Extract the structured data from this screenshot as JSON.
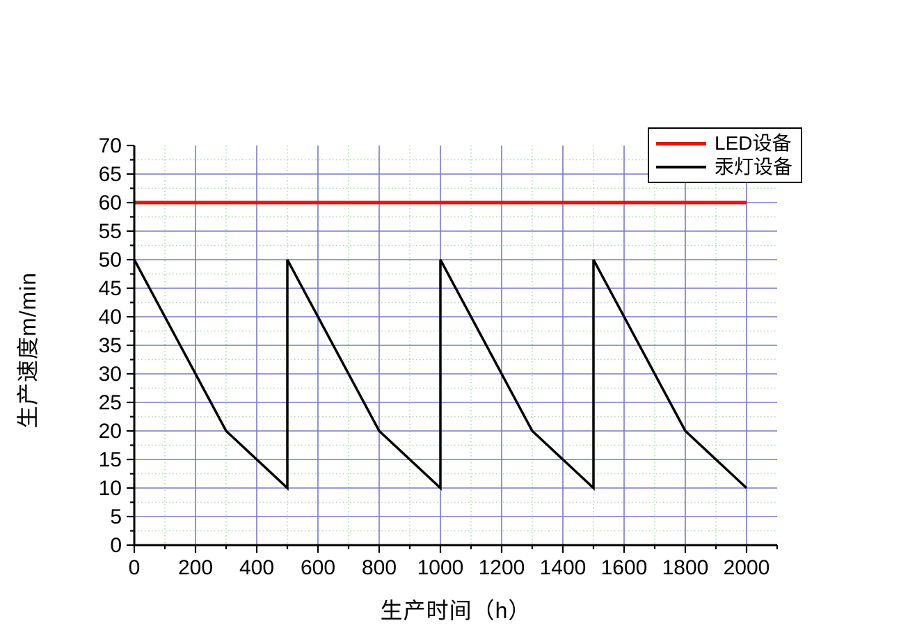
{
  "chart_data": {
    "type": "line",
    "title": "",
    "xlabel": "生产时间（h）",
    "ylabel": "生产速度m/min",
    "xlim": [
      0,
      2100
    ],
    "ylim": [
      0,
      70
    ],
    "x_major_step": 200,
    "x_minor_step": 100,
    "x_label_max": 2000,
    "y_major_step": 5,
    "y_minor_step": 2.5,
    "grid": {
      "major_color": "#7878c8",
      "minor_color": "#a6d9a6",
      "minor_style": "dotted"
    },
    "axis_color": "#000000",
    "legend": {
      "position": "top-right"
    },
    "series": [
      {
        "name": "LED设备",
        "color": "#e11414",
        "width": 5,
        "points": [
          [
            0,
            60
          ],
          [
            2000,
            60
          ]
        ]
      },
      {
        "name": "汞灯设备",
        "color": "#000000",
        "width": 3.5,
        "points": [
          [
            0,
            50
          ],
          [
            300,
            20
          ],
          [
            500,
            10
          ],
          [
            500,
            50
          ],
          [
            800,
            20
          ],
          [
            1000,
            10
          ],
          [
            1000,
            50
          ],
          [
            1300,
            20
          ],
          [
            1500,
            10
          ],
          [
            1500,
            50
          ],
          [
            1800,
            20
          ],
          [
            2000,
            10
          ]
        ]
      }
    ]
  }
}
